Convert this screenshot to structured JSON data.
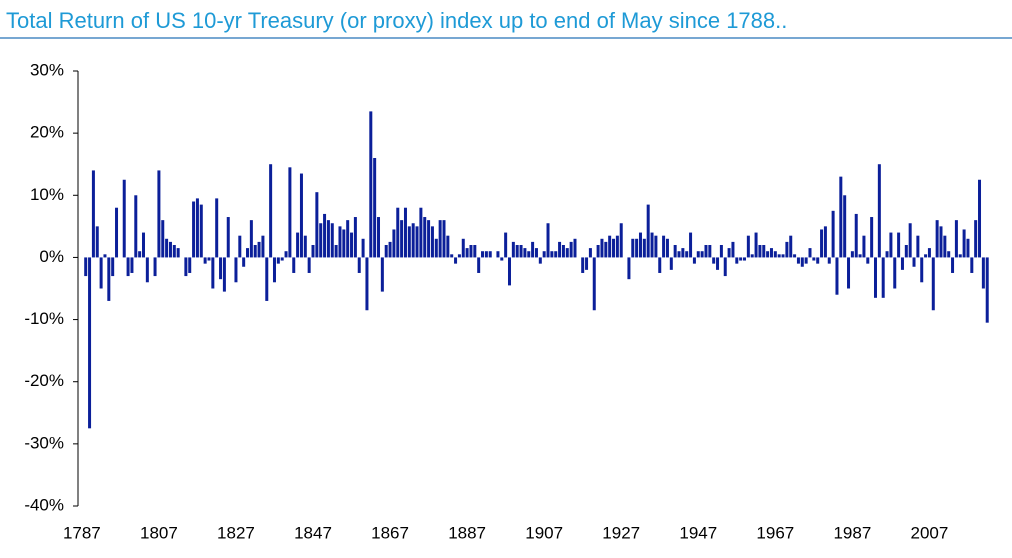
{
  "chart_data": {
    "type": "bar",
    "title": "Total Return of US 10-yr Treasury (or proxy) index up to end of May since 1788..",
    "color": "#0b1f99",
    "x": [
      1788,
      1789,
      1790,
      1791,
      1792,
      1793,
      1794,
      1795,
      1796,
      1797,
      1798,
      1799,
      1800,
      1801,
      1802,
      1803,
      1804,
      1805,
      1806,
      1807,
      1808,
      1809,
      1810,
      1811,
      1812,
      1813,
      1814,
      1815,
      1816,
      1817,
      1818,
      1819,
      1820,
      1821,
      1822,
      1823,
      1824,
      1825,
      1826,
      1827,
      1828,
      1829,
      1830,
      1831,
      1832,
      1833,
      1834,
      1835,
      1836,
      1837,
      1838,
      1839,
      1840,
      1841,
      1842,
      1843,
      1844,
      1845,
      1846,
      1847,
      1848,
      1849,
      1850,
      1851,
      1852,
      1853,
      1854,
      1855,
      1856,
      1857,
      1858,
      1859,
      1860,
      1861,
      1862,
      1863,
      1864,
      1865,
      1866,
      1867,
      1868,
      1869,
      1870,
      1871,
      1872,
      1873,
      1874,
      1875,
      1876,
      1877,
      1878,
      1879,
      1880,
      1881,
      1882,
      1883,
      1884,
      1885,
      1886,
      1887,
      1888,
      1889,
      1890,
      1891,
      1892,
      1893,
      1894,
      1895,
      1896,
      1897,
      1898,
      1899,
      1900,
      1901,
      1902,
      1903,
      1904,
      1905,
      1906,
      1907,
      1908,
      1909,
      1910,
      1911,
      1912,
      1913,
      1914,
      1915,
      1916,
      1917,
      1918,
      1919,
      1920,
      1921,
      1922,
      1923,
      1924,
      1925,
      1926,
      1927,
      1928,
      1929,
      1930,
      1931,
      1932,
      1933,
      1934,
      1935,
      1936,
      1937,
      1938,
      1939,
      1940,
      1941,
      1942,
      1943,
      1944,
      1945,
      1946,
      1947,
      1948,
      1949,
      1950,
      1951,
      1952,
      1953,
      1954,
      1955,
      1956,
      1957,
      1958,
      1959,
      1960,
      1961,
      1962,
      1963,
      1964,
      1965,
      1966,
      1967,
      1968,
      1969,
      1970,
      1971,
      1972,
      1973,
      1974,
      1975,
      1976,
      1977,
      1978,
      1979,
      1980,
      1981,
      1982,
      1983,
      1984,
      1985,
      1986,
      1987,
      1988,
      1989,
      1990,
      1991,
      1992,
      1993,
      1994,
      1995,
      1996,
      1997,
      1998,
      1999,
      2000,
      2001,
      2002,
      2003,
      2004,
      2005,
      2006,
      2007,
      2008,
      2009,
      2010,
      2011,
      2012,
      2013,
      2014,
      2015,
      2016,
      2017,
      2018,
      2019,
      2020,
      2021,
      2022
    ],
    "values": [
      -3,
      -27.5,
      14,
      5,
      -5,
      0.5,
      -7,
      -3,
      8,
      0,
      12.5,
      -3,
      -2.5,
      10,
      1,
      4,
      -4,
      0,
      -3,
      14,
      6,
      3,
      2.5,
      2,
      1.5,
      0,
      -3,
      -2.5,
      9,
      9.5,
      8.5,
      -1,
      -0.5,
      -5,
      9.5,
      -3.5,
      -5.5,
      6.5,
      0,
      -4,
      3.5,
      -1.5,
      1.5,
      6,
      2,
      2.5,
      3.5,
      -7,
      15,
      -4,
      -1,
      -0.5,
      1,
      14.5,
      -2.5,
      4,
      13.5,
      3.5,
      -2.5,
      2,
      10.5,
      5.5,
      7,
      6,
      5.5,
      2,
      5,
      4.5,
      6,
      4,
      6.5,
      -2.5,
      3,
      -8.5,
      23.5,
      16,
      6.5,
      -5.5,
      2,
      2.5,
      4.5,
      8,
      6,
      8,
      5,
      5.5,
      5,
      8,
      6.5,
      6,
      5,
      3,
      6,
      6,
      3.5,
      0.5,
      -1,
      0.5,
      3,
      1.5,
      2,
      2,
      -2.5,
      1,
      1,
      1,
      0,
      1,
      -0.5,
      4,
      -4.5,
      2.5,
      2,
      2,
      1.5,
      1,
      2.5,
      1.5,
      -1,
      1,
      5.5,
      1,
      1,
      2.5,
      2,
      1.5,
      2.5,
      3,
      0,
      -2.5,
      -2,
      1.5,
      -8.5,
      2,
      3,
      2.5,
      3.5,
      3,
      3.5,
      5.5,
      0,
      -3.5,
      3,
      3,
      4,
      3,
      8.5,
      4,
      3.5,
      -2.5,
      3.5,
      3,
      -2,
      2,
      1,
      1.5,
      1,
      4,
      -1,
      1,
      1,
      2,
      2,
      -1,
      -2,
      2,
      -3,
      1.5,
      2.5,
      -1,
      -0.5,
      -0.5,
      3.5,
      0.5,
      4,
      2,
      2,
      1,
      1.5,
      1,
      0.5,
      0.5,
      2.5,
      3.5,
      0.5,
      -1,
      -1.5,
      -1,
      1.5,
      -0.5,
      -1,
      4.5,
      5,
      -1,
      7.5,
      -6,
      13,
      10,
      -5,
      1,
      7,
      0.5,
      3.5,
      -1,
      6.5,
      -6.5,
      15,
      -6.5,
      1,
      4,
      -5,
      4,
      -2,
      2,
      5.5,
      -1.5,
      3.5,
      -4,
      0.5,
      1.5,
      -8.5,
      6,
      5,
      3.5,
      1,
      -2.5,
      6,
      0.5,
      4.5,
      3,
      -2.5,
      6,
      12.5,
      -5,
      -10.5
    ],
    "xlim": [
      1786,
      2023.5
    ],
    "xticks": [
      1787,
      1807,
      1827,
      1847,
      1867,
      1887,
      1907,
      1927,
      1947,
      1967,
      1987,
      2007
    ],
    "ylim": [
      -40,
      30
    ],
    "yticks": [
      {
        "value": -40,
        "label": "-40%"
      },
      {
        "value": -30,
        "label": "-30%"
      },
      {
        "value": -20,
        "label": "-20%"
      },
      {
        "value": -10,
        "label": "-10%"
      },
      {
        "value": 0,
        "label": "0%"
      },
      {
        "value": 10,
        "label": "10%"
      },
      {
        "value": 20,
        "label": "20%"
      },
      {
        "value": 30,
        "label": "30%"
      }
    ]
  }
}
